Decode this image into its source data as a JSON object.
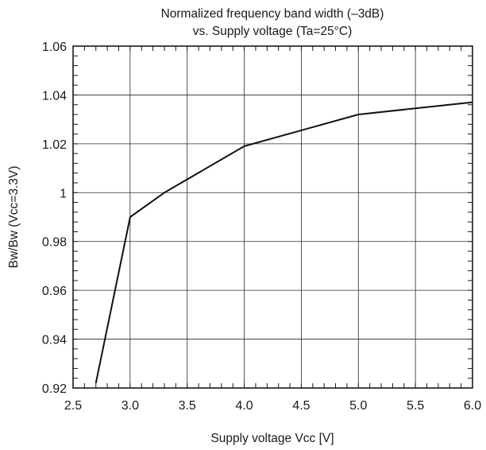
{
  "chart_data": {
    "type": "line",
    "title_lines": [
      "Normalized frequency band width (–3dB)",
      "vs. Supply voltage (Ta=25°C)"
    ],
    "xlabel": "Supply voltage Vcc [V]",
    "ylabel": "Bw/Bw (Vcc=3.3V)",
    "xlim": [
      2.5,
      6.0
    ],
    "ylim": [
      0.92,
      1.06
    ],
    "x_ticks": [
      2.5,
      3.0,
      3.5,
      4.0,
      4.5,
      5.0,
      5.5,
      6.0
    ],
    "x_tick_labels": [
      "2.5",
      "3.0",
      "3.5",
      "4.0",
      "4.5",
      "5.0",
      "5.5",
      "6.0"
    ],
    "y_ticks": [
      0.92,
      0.94,
      0.96,
      0.98,
      1.0,
      1.02,
      1.04,
      1.06
    ],
    "y_tick_labels": [
      "0.92",
      "0.94",
      "0.96",
      "0.98",
      "1",
      "1.02",
      "1.04",
      "1.06"
    ],
    "grid": true,
    "series": [
      {
        "x": [
          2.7,
          3.0,
          3.3,
          4.0,
          5.0,
          6.0
        ],
        "y": [
          0.922,
          0.99,
          1.0,
          1.019,
          1.032,
          1.037
        ]
      }
    ]
  }
}
